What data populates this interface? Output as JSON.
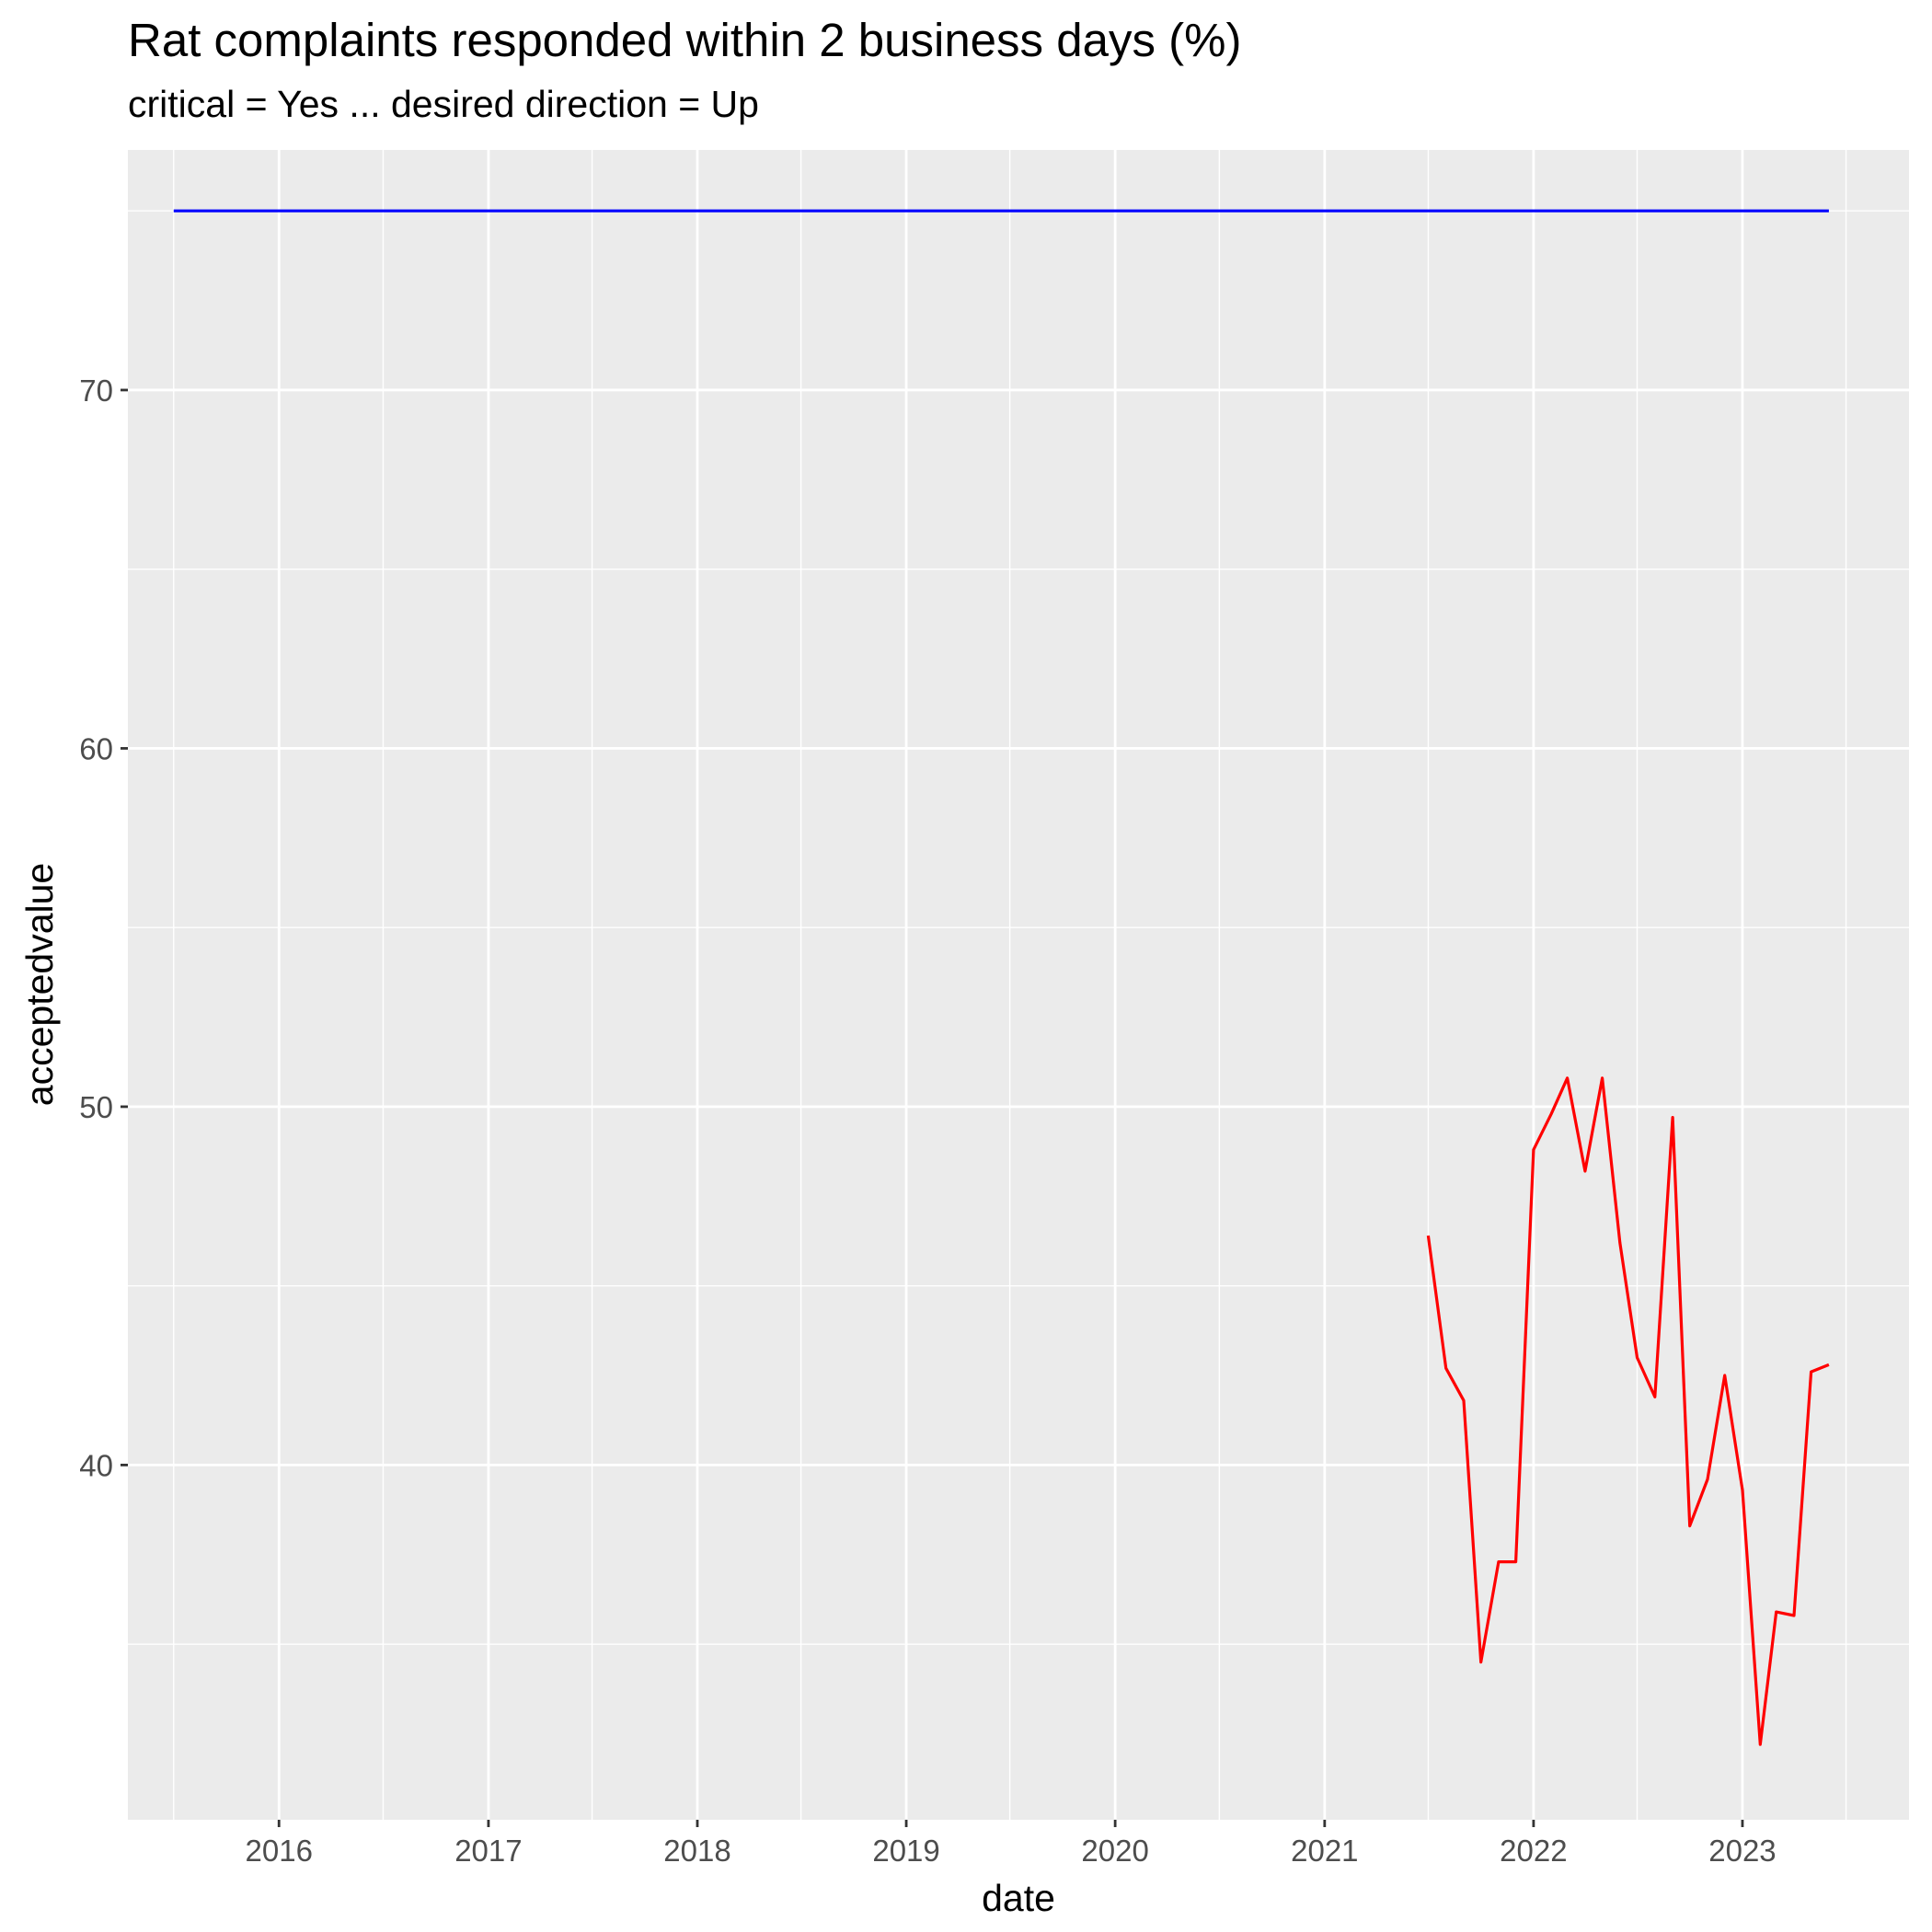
{
  "chart_data": {
    "type": "line",
    "title": "Rat complaints responded within 2 business days (%)",
    "subtitle": "critical = Yes ... desired direction = Up",
    "xlabel": "date",
    "ylabel": "acceptedvalue",
    "x_ticks": [
      "2016",
      "2017",
      "2018",
      "2019",
      "2020",
      "2021",
      "2022",
      "2023"
    ],
    "y_ticks": [
      40,
      50,
      60,
      70
    ],
    "xlim": [
      "2015-04-12",
      "2023-10-19"
    ],
    "ylim": [
      30.1,
      76.7
    ],
    "grid": true,
    "legend": "none",
    "series": [
      {
        "color": "#0000FF",
        "x": [
          "2015-07-01",
          "2023-06-01"
        ],
        "y": [
          75,
          75
        ]
      },
      {
        "color": "#FF0000",
        "x": [
          "2021-07-01",
          "2021-08-01",
          "2021-09-01",
          "2021-10-01",
          "2021-11-01",
          "2021-12-01",
          "2022-01-01",
          "2022-02-01",
          "2022-03-01",
          "2022-04-01",
          "2022-05-01",
          "2022-06-01",
          "2022-07-01",
          "2022-08-01",
          "2022-09-01",
          "2022-10-01",
          "2022-11-01",
          "2022-12-01",
          "2023-01-01",
          "2023-02-01",
          "2023-03-01",
          "2023-04-01",
          "2023-05-01",
          "2023-06-01"
        ],
        "y": [
          46.4,
          42.7,
          41.8,
          34.5,
          37.3,
          37.3,
          48.8,
          49.8,
          50.8,
          48.2,
          50.8,
          46.2,
          43.0,
          41.9,
          49.7,
          38.3,
          39.6,
          42.5,
          39.3,
          32.2,
          35.9,
          35.8,
          42.6,
          42.8
        ]
      }
    ]
  }
}
